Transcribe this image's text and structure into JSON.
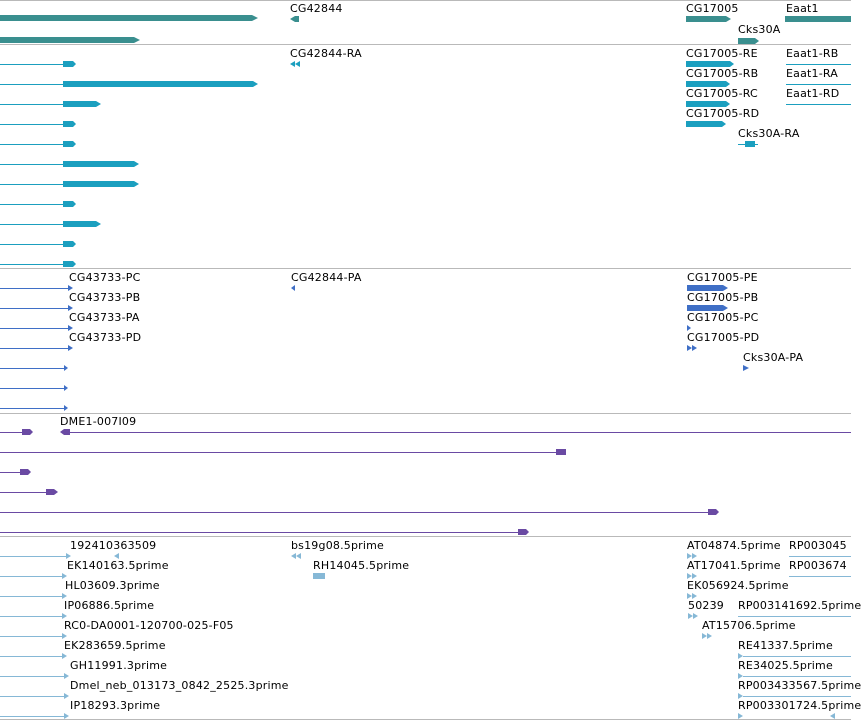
{
  "colors": {
    "gene": "#3a8f8f",
    "transcript_a": "#1b9fbf",
    "transcript_b": "#3f6fc6",
    "clone": "#6a4aa3",
    "est": "#86b8d6",
    "separator": "#b9b9b9"
  },
  "tracks": {
    "genes": {
      "labels": [
        "CG42844",
        "CG17005",
        "Eaat1",
        "Cks30A"
      ]
    },
    "transcripts_a": {
      "labels": [
        "CG42844-RA",
        "CG17005-RE",
        "CG17005-RB",
        "CG17005-RC",
        "CG17005-RD",
        "Eaat1-RB",
        "Eaat1-RA",
        "Eaat1-RD",
        "Cks30A-RA"
      ]
    },
    "transcripts_b": {
      "labels": [
        "CG43733-PC",
        "CG43733-PB",
        "CG43733-PA",
        "CG43733-PD",
        "CG42844-PA",
        "CG17005-PE",
        "CG17005-PB",
        "CG17005-PC",
        "CG17005-PD",
        "Cks30A-PA"
      ]
    },
    "clones": {
      "labels": [
        "DME1-007I09"
      ]
    },
    "ests": {
      "labels": [
        "192410363509",
        "EK140163.5prime",
        "HL03609.3prime",
        "IP06886.5prime",
        "RC0-DA0001-120700-025-F05",
        "EK283659.5prime",
        "GH11991.3prime",
        "Dmel_neb_013173_0842_2525.3prime",
        "IP18293.3prime",
        "bs19g08.5prime",
        "RH14045.5prime",
        "AT04874.5prime",
        "RP003045",
        "AT17041.5prime",
        "RP003674",
        "EK056924.5prime",
        "50239",
        "RP003141692.5prime",
        "AT15706.5prime",
        "RE41337.5prime",
        "RE34025.5prime",
        "RP003433567.5prime",
        "RP003301724.5prime"
      ]
    }
  }
}
